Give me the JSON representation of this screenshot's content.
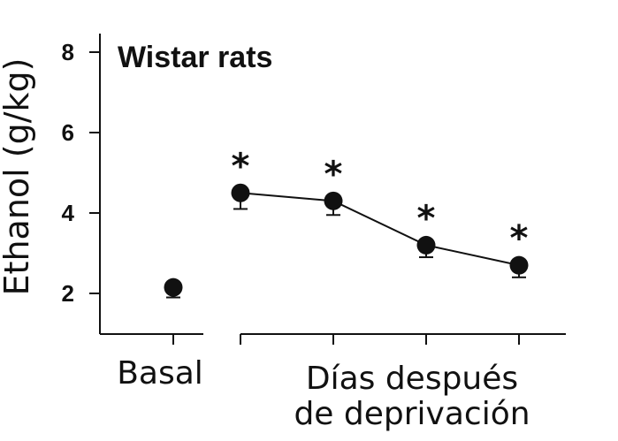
{
  "chart_data": {
    "type": "scatter",
    "title": "Wistar rats",
    "ylabel": "Ethanol (g/kg)",
    "ylim": [
      1,
      8.5
    ],
    "yticks": [
      2,
      4,
      6,
      8
    ],
    "ytick_labels": [
      "2",
      "4",
      "6",
      "8"
    ],
    "grid": false,
    "groups": [
      {
        "label": "Basal",
        "x": [
          0
        ]
      },
      {
        "label": "Días después\nde deprivación",
        "x": [
          1,
          2,
          3,
          4
        ]
      }
    ],
    "series": [
      {
        "points": [
          {
            "x": 0,
            "y": 2.15,
            "err": 0.25,
            "significant": false,
            "connected": false
          },
          {
            "x": 1,
            "y": 4.5,
            "err": 0.4,
            "significant": true,
            "connected": true
          },
          {
            "x": 2,
            "y": 4.3,
            "err": 0.35,
            "significant": true,
            "connected": true
          },
          {
            "x": 3,
            "y": 3.2,
            "err": 0.3,
            "significant": true,
            "connected": true
          },
          {
            "x": 4,
            "y": 2.7,
            "err": 0.3,
            "significant": true,
            "connected": true
          }
        ]
      }
    ],
    "significance_marker": "*"
  }
}
